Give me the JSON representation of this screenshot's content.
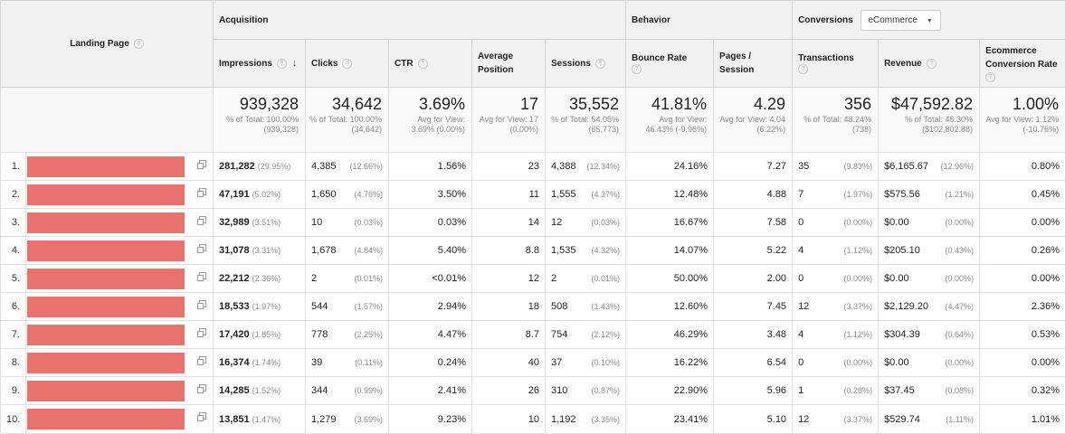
{
  "header": {
    "landing_page_label": "Landing Page",
    "groups": {
      "acquisition": "Acquisition",
      "behavior": "Behavior",
      "conversions": "Conversions"
    },
    "conversion_dropdown": {
      "value": "eCommerce"
    },
    "metrics": {
      "impressions": "Impressions",
      "clicks": "Clicks",
      "ctr": "CTR",
      "avg_position": "Average Position",
      "sessions": "Sessions",
      "bounce_rate": "Bounce Rate",
      "pages_session": "Pages / Session",
      "transactions": "Transactions",
      "revenue": "Revenue",
      "ecom_conv_rate": "Ecommerce Conversion Rate"
    },
    "help_glyph": "?",
    "sort_glyph": "↓"
  },
  "totals": {
    "impressions": {
      "value": "939,328",
      "sub": "% of Total: 100.00% (939,328)"
    },
    "clicks": {
      "value": "34,642",
      "sub": "% of Total: 100.00% (34,642)"
    },
    "ctr": {
      "value": "3.69%",
      "sub": "Avg for View: 3.69% (0.00%)"
    },
    "avg_position": {
      "value": "17",
      "sub": "Avg for View: 17 (0.00%)"
    },
    "sessions": {
      "value": "35,552",
      "sub": "% of Total: 54.05% (65,773)"
    },
    "bounce_rate": {
      "value": "41.81%",
      "sub": "Avg for View: 46.43% (-9.96%)"
    },
    "pages_session": {
      "value": "4.29",
      "sub": "Avg for View: 4.04 (6.22%)"
    },
    "transactions": {
      "value": "356",
      "sub": "% of Total: 48.24% (738)"
    },
    "revenue": {
      "value": "$47,592.82",
      "sub": "% of Total: 46.30% ($102,802.88)"
    },
    "ecom_conv_rate": {
      "value": "1.00%",
      "sub": "Avg for View: 1.12% (-10.76%)"
    }
  },
  "rows": [
    {
      "idx": "1.",
      "impressions": "281,282",
      "impressions_pct": "(29.95%)",
      "clicks": "4,385",
      "clicks_pct": "(12.66%)",
      "ctr": "1.56%",
      "avg_position": "23",
      "sessions": "4,388",
      "sessions_pct": "(12.34%)",
      "bounce_rate": "24.16%",
      "pages_session": "7.27",
      "transactions": "35",
      "transactions_pct": "(9.83%)",
      "revenue": "$6,165.67",
      "revenue_pct": "(12.96%)",
      "ecom_conv_rate": "0.80%"
    },
    {
      "idx": "2.",
      "impressions": "47,191",
      "impressions_pct": "(5.02%)",
      "clicks": "1,650",
      "clicks_pct": "(4.76%)",
      "ctr": "3.50%",
      "avg_position": "11",
      "sessions": "1,555",
      "sessions_pct": "(4.37%)",
      "bounce_rate": "12.48%",
      "pages_session": "4.88",
      "transactions": "7",
      "transactions_pct": "(1.97%)",
      "revenue": "$575.56",
      "revenue_pct": "(1.21%)",
      "ecom_conv_rate": "0.45%"
    },
    {
      "idx": "3.",
      "impressions": "32,989",
      "impressions_pct": "(3.51%)",
      "clicks": "10",
      "clicks_pct": "(0.03%)",
      "ctr": "0.03%",
      "avg_position": "14",
      "sessions": "12",
      "sessions_pct": "(0.03%)",
      "bounce_rate": "16.67%",
      "pages_session": "7.58",
      "transactions": "0",
      "transactions_pct": "(0.00%)",
      "revenue": "$0.00",
      "revenue_pct": "(0.00%)",
      "ecom_conv_rate": "0.00%"
    },
    {
      "idx": "4.",
      "impressions": "31,078",
      "impressions_pct": "(3.31%)",
      "clicks": "1,678",
      "clicks_pct": "(4.84%)",
      "ctr": "5.40%",
      "avg_position": "8.8",
      "sessions": "1,535",
      "sessions_pct": "(4.32%)",
      "bounce_rate": "14.07%",
      "pages_session": "5.22",
      "transactions": "4",
      "transactions_pct": "(1.12%)",
      "revenue": "$205.10",
      "revenue_pct": "(0.43%)",
      "ecom_conv_rate": "0.26%"
    },
    {
      "idx": "5.",
      "impressions": "22,212",
      "impressions_pct": "(2.36%)",
      "clicks": "2",
      "clicks_pct": "(0.01%)",
      "ctr": "<0.01%",
      "avg_position": "12",
      "sessions": "2",
      "sessions_pct": "(0.01%)",
      "bounce_rate": "50.00%",
      "pages_session": "2.00",
      "transactions": "0",
      "transactions_pct": "(0.00%)",
      "revenue": "$0.00",
      "revenue_pct": "(0.00%)",
      "ecom_conv_rate": "0.00%"
    },
    {
      "idx": "6.",
      "impressions": "18,533",
      "impressions_pct": "(1.97%)",
      "clicks": "544",
      "clicks_pct": "(1.57%)",
      "ctr": "2.94%",
      "avg_position": "18",
      "sessions": "508",
      "sessions_pct": "(1.43%)",
      "bounce_rate": "12.60%",
      "pages_session": "7.45",
      "transactions": "12",
      "transactions_pct": "(3.37%)",
      "revenue": "$2,129.20",
      "revenue_pct": "(4.47%)",
      "ecom_conv_rate": "2.36%"
    },
    {
      "idx": "7.",
      "impressions": "17,420",
      "impressions_pct": "(1.85%)",
      "clicks": "778",
      "clicks_pct": "(2.25%)",
      "ctr": "4.47%",
      "avg_position": "8.7",
      "sessions": "754",
      "sessions_pct": "(2.12%)",
      "bounce_rate": "46.29%",
      "pages_session": "3.48",
      "transactions": "4",
      "transactions_pct": "(1.12%)",
      "revenue": "$304.39",
      "revenue_pct": "(0.64%)",
      "ecom_conv_rate": "0.53%"
    },
    {
      "idx": "8.",
      "impressions": "16,374",
      "impressions_pct": "(1.74%)",
      "clicks": "39",
      "clicks_pct": "(0.11%)",
      "ctr": "0.24%",
      "avg_position": "40",
      "sessions": "37",
      "sessions_pct": "(0.10%)",
      "bounce_rate": "16.22%",
      "pages_session": "6.54",
      "transactions": "0",
      "transactions_pct": "(0.00%)",
      "revenue": "$0.00",
      "revenue_pct": "(0.00%)",
      "ecom_conv_rate": "0.00%"
    },
    {
      "idx": "9.",
      "impressions": "14,285",
      "impressions_pct": "(1.52%)",
      "clicks": "344",
      "clicks_pct": "(0.99%)",
      "ctr": "2.41%",
      "avg_position": "26",
      "sessions": "310",
      "sessions_pct": "(0.87%)",
      "bounce_rate": "22.90%",
      "pages_session": "5.96",
      "transactions": "1",
      "transactions_pct": "(0.28%)",
      "revenue": "$37.45",
      "revenue_pct": "(0.08%)",
      "ecom_conv_rate": "0.32%"
    },
    {
      "idx": "10.",
      "impressions": "13,851",
      "impressions_pct": "(1.47%)",
      "clicks": "1,279",
      "clicks_pct": "(3.69%)",
      "ctr": "9.23%",
      "avg_position": "10",
      "sessions": "1,192",
      "sessions_pct": "(3.35%)",
      "bounce_rate": "23.41%",
      "pages_session": "5.10",
      "transactions": "12",
      "transactions_pct": "(3.37%)",
      "revenue": "$529.74",
      "revenue_pct": "(1.11%)",
      "ecom_conv_rate": "1.01%"
    }
  ],
  "colors": {
    "redaction": "#e8736c",
    "header_bg": "#f1f1f1",
    "muted_text": "#888888"
  },
  "icons": {
    "help": "help-icon",
    "sort": "sort-desc-icon",
    "external_link": "external-link-icon",
    "dropdown": "chevron-down-icon"
  }
}
